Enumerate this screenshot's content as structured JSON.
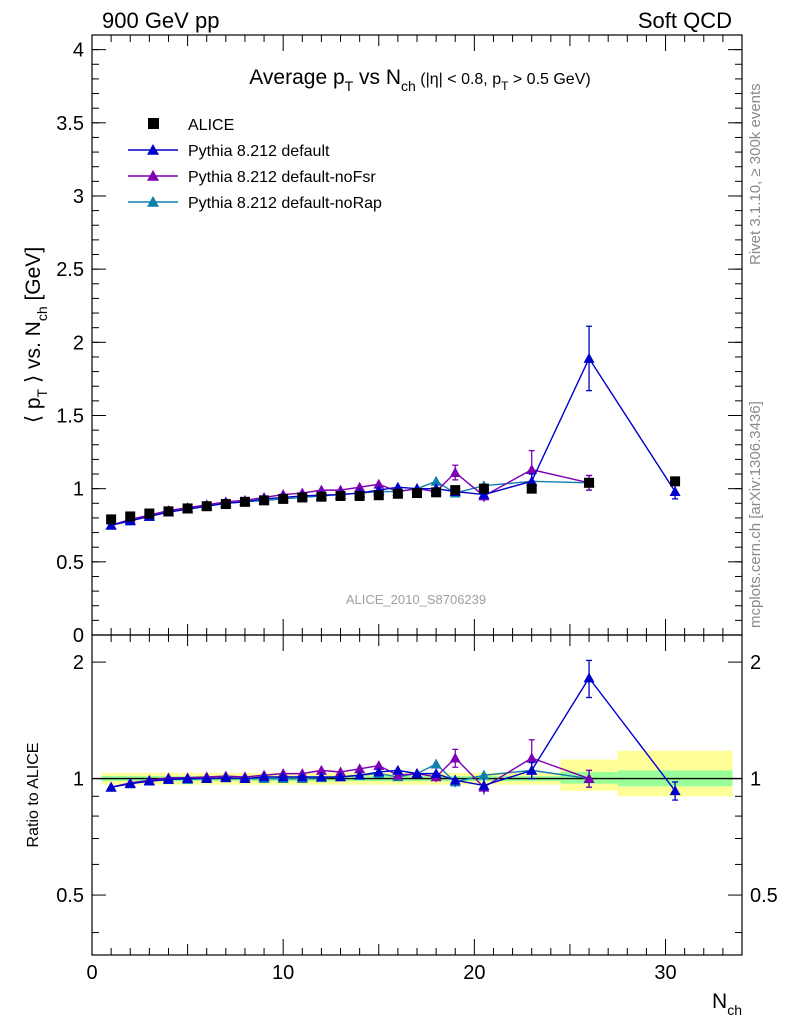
{
  "header": {
    "left": "900 GeV pp",
    "right": "Soft QCD"
  },
  "side_labels": {
    "rivet": "Rivet 3.1.10, ≥ 300k events",
    "mcplots": "mcplots.cern.ch [arXiv:1306.3436]"
  },
  "colors": {
    "alice": "#000000",
    "default": "#0000cc",
    "noFsr": "#7f00b2",
    "noRap": "#0f7fae",
    "band_inner": "#99ff99",
    "band_outer": "#ffff99"
  },
  "chart_data": [
    {
      "type": "scatter",
      "panel": "main",
      "title": "Average p_T vs N_ch (|η| < 0.8, p_T > 0.5 GeV)",
      "ylabel": "⟨ p_T ⟩ vs. N_ch [GeV]",
      "watermark": "ALICE_2010_S8706239",
      "xlim": [
        0,
        34
      ],
      "ylim": [
        0,
        4.1
      ],
      "yticks": [
        0,
        0.5,
        1,
        1.5,
        2,
        2.5,
        3,
        3.5,
        4
      ],
      "legend_position": "top-left",
      "x": [
        1,
        2,
        3,
        4,
        5,
        6,
        7,
        8,
        9,
        10,
        11,
        12,
        13,
        14,
        15,
        16,
        17,
        18,
        19,
        20.5,
        23,
        26,
        30.5
      ],
      "series": [
        {
          "name": "ALICE",
          "marker": "square",
          "values": [
            0.79,
            0.81,
            0.83,
            0.845,
            0.865,
            0.88,
            0.895,
            0.91,
            0.92,
            0.93,
            0.94,
            0.945,
            0.95,
            0.95,
            0.955,
            0.965,
            0.97,
            0.975,
            0.99,
            1.0,
            1.0,
            1.04,
            1.05
          ]
        },
        {
          "name": "Pythia 8.212 default",
          "marker": "triangle",
          "values": [
            0.75,
            0.78,
            0.81,
            0.84,
            0.86,
            0.88,
            0.9,
            0.91,
            0.93,
            0.94,
            0.95,
            0.955,
            0.96,
            0.97,
            0.99,
            1.01,
            1.0,
            1.0,
            0.98,
            0.96,
            1.05,
            1.89,
            0.98
          ],
          "errors": [
            0.005,
            0.005,
            0.005,
            0.005,
            0.005,
            0.005,
            0.005,
            0.005,
            0.005,
            0.005,
            0.005,
            0.01,
            0.01,
            0.01,
            0.015,
            0.02,
            0.02,
            0.02,
            0.03,
            0.04,
            0.05,
            0.22,
            0.05
          ]
        },
        {
          "name": "Pythia 8.212 default-noFsr",
          "marker": "triangle",
          "values": [
            0.75,
            0.79,
            0.82,
            0.85,
            0.87,
            0.89,
            0.91,
            0.92,
            0.94,
            0.96,
            0.97,
            0.99,
            0.99,
            1.01,
            1.03,
            0.98,
            1.0,
            0.98,
            1.11,
            0.95,
            1.13,
            1.04,
            null
          ],
          "errors": [
            0.005,
            0.005,
            0.005,
            0.005,
            0.005,
            0.005,
            0.005,
            0.005,
            0.005,
            0.005,
            0.005,
            0.01,
            0.01,
            0.01,
            0.015,
            0.02,
            0.02,
            0.03,
            0.05,
            0.04,
            0.13,
            0.05,
            null
          ]
        },
        {
          "name": "Pythia 8.212 default-noRap",
          "marker": "triangle",
          "values": [
            0.75,
            0.78,
            0.81,
            0.84,
            0.86,
            0.88,
            0.9,
            0.91,
            0.92,
            0.93,
            0.94,
            0.95,
            0.96,
            0.97,
            0.98,
            0.98,
            1.0,
            1.05,
            0.97,
            1.02,
            1.05,
            1.04,
            null
          ],
          "errors": [
            0.005,
            0.005,
            0.005,
            0.005,
            0.005,
            0.005,
            0.005,
            0.005,
            0.005,
            0.005,
            0.005,
            0.01,
            0.01,
            0.01,
            0.015,
            0.02,
            0.02,
            0.03,
            0.03,
            0.03,
            0.03,
            0.05,
            null
          ]
        }
      ]
    },
    {
      "type": "scatter",
      "panel": "ratio",
      "ylabel": "Ratio to ALICE",
      "xlabel": "N_ch",
      "xlim": [
        0,
        34
      ],
      "ylim": [
        0.35,
        2.35
      ],
      "yticks": [
        0.5,
        1,
        2
      ],
      "xticks": [
        0,
        10,
        20,
        30
      ],
      "reference_line": 1,
      "bands": [
        {
          "x0": 0.5,
          "x1": 24.5,
          "inner": [
            0.985,
            1.015
          ],
          "outer": [
            0.965,
            1.035
          ]
        },
        {
          "x0": 24.5,
          "x1": 27.5,
          "inner": [
            0.97,
            1.04
          ],
          "outer": [
            0.93,
            1.12
          ]
        },
        {
          "x0": 27.5,
          "x1": 33.5,
          "inner": [
            0.955,
            1.05
          ],
          "outer": [
            0.9,
            1.18
          ]
        }
      ],
      "x": [
        1,
        2,
        3,
        4,
        5,
        6,
        7,
        8,
        9,
        10,
        11,
        12,
        13,
        14,
        15,
        16,
        17,
        18,
        19,
        20.5,
        23,
        26,
        30.5
      ],
      "series": [
        {
          "name": "Pythia 8.212 default",
          "values": [
            0.95,
            0.97,
            0.985,
            0.995,
            1.0,
            1.0,
            1.005,
            1.0,
            1.01,
            1.01,
            1.01,
            1.01,
            1.01,
            1.02,
            1.04,
            1.05,
            1.03,
            1.03,
            0.99,
            0.96,
            1.05,
            1.82,
            0.93
          ],
          "errors": [
            0.005,
            0.005,
            0.005,
            0.005,
            0.005,
            0.005,
            0.005,
            0.005,
            0.005,
            0.005,
            0.005,
            0.01,
            0.01,
            0.01,
            0.015,
            0.02,
            0.02,
            0.02,
            0.03,
            0.04,
            0.05,
            0.2,
            0.05
          ]
        },
        {
          "name": "Pythia 8.212 default-noFsr",
          "values": [
            0.95,
            0.975,
            0.99,
            1.005,
            1.005,
            1.01,
            1.015,
            1.01,
            1.02,
            1.03,
            1.03,
            1.05,
            1.04,
            1.06,
            1.08,
            1.02,
            1.03,
            1.01,
            1.13,
            0.95,
            1.13,
            1.0,
            null
          ],
          "errors": [
            0.005,
            0.005,
            0.005,
            0.005,
            0.005,
            0.005,
            0.005,
            0.005,
            0.005,
            0.005,
            0.005,
            0.01,
            0.01,
            0.01,
            0.015,
            0.02,
            0.02,
            0.03,
            0.06,
            0.04,
            0.13,
            0.05,
            null
          ]
        },
        {
          "name": "Pythia 8.212 default-noRap",
          "values": [
            0.95,
            0.97,
            0.985,
            0.995,
            0.995,
            1.0,
            1.005,
            1.0,
            1.0,
            1.0,
            1.0,
            1.005,
            1.01,
            1.02,
            1.03,
            1.01,
            1.03,
            1.09,
            0.98,
            1.02,
            1.05,
            1.0,
            null
          ],
          "errors": [
            0.005,
            0.005,
            0.005,
            0.005,
            0.005,
            0.005,
            0.005,
            0.005,
            0.005,
            0.005,
            0.005,
            0.01,
            0.01,
            0.01,
            0.015,
            0.02,
            0.02,
            0.03,
            0.03,
            0.03,
            0.03,
            0.05,
            null
          ]
        }
      ]
    }
  ]
}
